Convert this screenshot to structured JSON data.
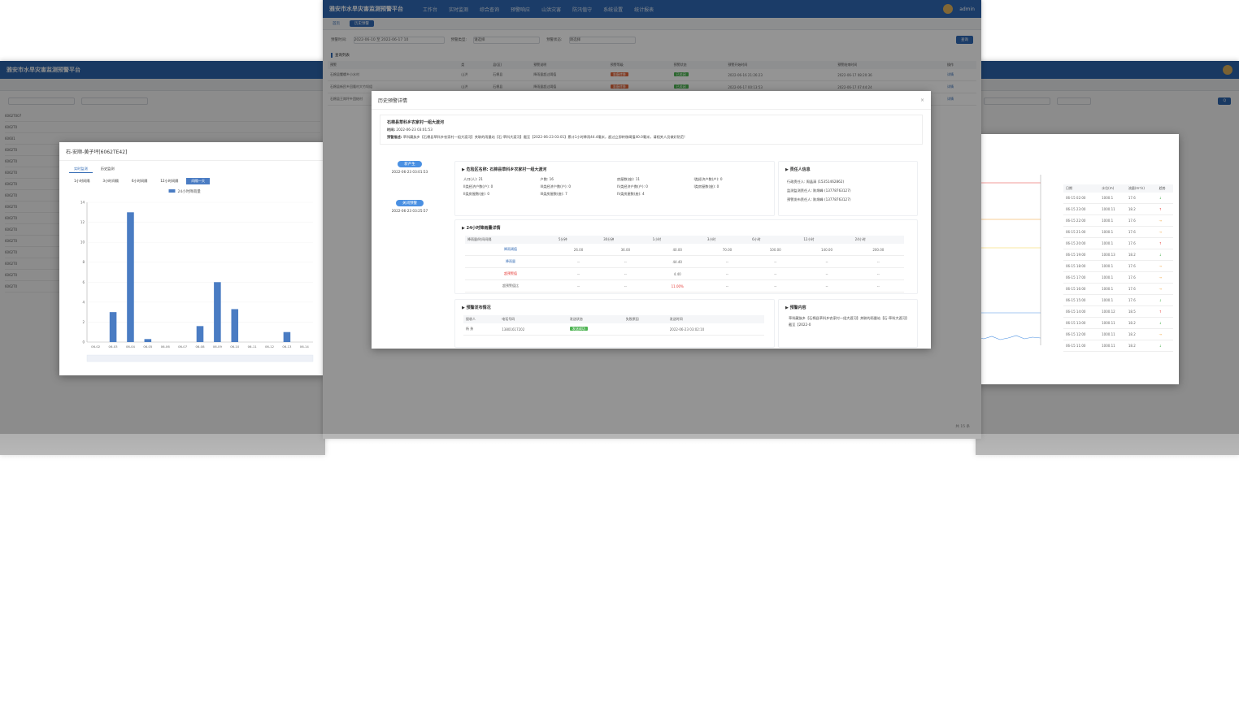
{
  "center": {
    "app_title": "雅安市水旱灾害监测预警平台",
    "nav": [
      "工作台",
      "实时监测",
      "综合查询",
      "预警响应",
      "山洪灾害",
      "防汛值守",
      "系统设置",
      "统计报表"
    ],
    "user_name": "admin",
    "tabs": [
      "首页",
      "历史预警"
    ],
    "filter": {
      "time_label": "预警时间:",
      "time_value": "2022-06-10 至 2022-06-17 10",
      "type_label": "预警类型:",
      "type_placeholder": "请选择",
      "status_label": "预警状态:",
      "status_placeholder": "请选择",
      "query_btn": "查询"
    },
    "section": "查询列表",
    "headers": [
      "预警",
      "类",
      "县(区)",
      "预警说明",
      "预警等级",
      "预警状态",
      "预警开始时间",
      "预警结束时间",
      "操作"
    ],
    "rows": [
      {
        "name": "石棉县蟹螺乡小水村",
        "type": "山洪",
        "county": "石棉县",
        "desc": "降雨量超过阈值",
        "level": "准备转移",
        "status": "已关闭",
        "start": "2022-06-16 21:26:23",
        "end": "2022-06-17 08:20:36",
        "op": "详情"
      },
      {
        "name": "石棉县新民乡回隆村大竹坝组",
        "type": "山洪",
        "county": "石棉县",
        "desc": "降雨量超过阈值",
        "level": "准备转移",
        "status": "已关闭",
        "start": "2022-06-17 00:13:53",
        "end": "2022-06-17 07:44:24",
        "op": "详情"
      },
      {
        "name": "石棉县王岗坪乡团结村",
        "type": "山洪",
        "county": "石棉县",
        "desc": "降雨量超过阈值",
        "level": "准备转移",
        "status": "已关闭",
        "start": "2022-06-16 23:43:53",
        "end": "2022-06-17 07:44:24",
        "op": "详情"
      }
    ],
    "pagination": "共 15 条",
    "modal": {
      "title": "历史预警详情",
      "place": "石棉县草科乡农家村一组大渡河",
      "time_label": "时间:",
      "time": "2022-06-23 03:01:53",
      "desc_label": "预警描述:",
      "desc": "草科藏族乡【石棉县草科乡农家村一组大渡河】关联的雨量站【石-草科大渡河】截至【2022-06-23 03:01】累计1小时降雨44.4毫米，超过立即转移阈值40.0毫米，请相关人员做好防范!",
      "timeline": [
        {
          "label": "新产生",
          "time": "2022-06-23 03:01:53"
        },
        {
          "label": "关闭预警",
          "time": "2022-06-23 03:25:57"
        }
      ],
      "danger": {
        "title": "危险区名称: 石棉县草科乡农家村一组大渡河",
        "kv": [
          "人口(人): 21",
          "户数: 16",
          "房屋数(座): 11",
          "I类经济户数(户): 0",
          "II类经济户数(户): 0",
          "III类经济户数(户): 0",
          "IV类经济户数(户): 0",
          "I类房屋数(座): 0",
          "II类房屋数(座): 0",
          "III类房屋数(座): 7",
          "IV类房屋数(座): 4"
        ]
      },
      "person": {
        "title": "责任人信息",
        "lines": [
          "行政责任人: 周晶清 (15351462862)",
          "监测监测责任人: 陈炳峰 (13778763127)",
          "预警发布责任人: 陈炳峰 (13778763127)"
        ]
      },
      "rain": {
        "title": "24小时降雨量详情",
        "headers": [
          "降雨量/时间间隔",
          "5分钟",
          "30分钟",
          "1小时",
          "3小时",
          "6小时",
          "12小时",
          "24小时"
        ],
        "rows": [
          {
            "name": "降雨阈值",
            "vals": [
              "26.00",
              "36.00",
              "40.00",
              "70.00",
              "100.00",
              "140.00",
              "200.00"
            ]
          },
          {
            "name": "降雨量",
            "vals": [
              "--",
              "--",
              "44.40",
              "--",
              "--",
              "--",
              "--"
            ]
          },
          {
            "name": "超预警值",
            "vals": [
              "--",
              "--",
              "4.40",
              "--",
              "--",
              "--",
              "--"
            ]
          },
          {
            "name": "超预警值比",
            "vals": [
              "--",
              "--",
              "11.00%",
              "--",
              "--",
              "--",
              "--"
            ]
          }
        ]
      },
      "publish": {
        "title": "预警发布情况",
        "headers": [
          "接收人",
          "电话号码",
          "发送状态",
          "失败原因",
          "发送时间"
        ],
        "row": [
          "杨 勇",
          "13801617202",
          "发送成功",
          "",
          "2022-06-23 03:02:10"
        ]
      },
      "content": {
        "title": "预警内容",
        "text": "草科藏族乡【石棉县草科乡农家村一组大渡河】关联的雨量站【石-草科大渡河】截至【2022-0"
      }
    }
  },
  "left": {
    "app_title": "雅安市水旱灾害监测预警平台",
    "modal_title": "石-安顺-黄子坪[6062TE42]",
    "chart_tabs": [
      "实时监测",
      "历史监测"
    ],
    "range_tabs": [
      "1小时间隔",
      "3小时间隔",
      "6小时间隔",
      "12小时间隔",
      "间隔一天"
    ],
    "legend": "24小时降雨量",
    "left_rows": [
      "6062T007",
      "6062T0",
      "60601",
      "6062T0",
      "6062T0",
      "6062T0",
      "6062T0",
      "6062T0",
      "6062T0",
      "6062T0",
      "6062T0",
      "6062T0",
      "6062T0",
      "6062T0",
      "6062T0",
      "6062T0"
    ]
  },
  "chart_data": {
    "type": "bar",
    "legend": "24小时降雨量",
    "categories": [
      "06-02",
      "06-03",
      "06-04",
      "06-05",
      "06-06",
      "06-07",
      "06-08",
      "06-09",
      "06-10",
      "06-11",
      "06-12",
      "06-13",
      "06-14"
    ],
    "values": [
      0,
      3,
      13,
      0.3,
      0,
      0,
      1.6,
      6,
      3.3,
      0,
      0,
      1,
      0
    ],
    "ylim": [
      0,
      14
    ]
  },
  "right": {
    "table_headers": [
      "日期",
      "水位(m)",
      "流量(m³/s)",
      "趋势"
    ],
    "rows": [
      [
        "06-15 02:00",
        "1000.1",
        "17.6",
        "↓"
      ],
      [
        "06-15 23:00",
        "1000.11",
        "18.2",
        "↑"
      ],
      [
        "06-15 22:00",
        "1000.1",
        "17.6",
        "→"
      ],
      [
        "06-15 21:00",
        "1000.1",
        "17.6",
        "→"
      ],
      [
        "06-15 20:00",
        "1000.1",
        "17.6",
        "↑"
      ],
      [
        "06-15 19:00",
        "1000.13",
        "18.2",
        "↓"
      ],
      [
        "06-15 18:00",
        "1000.1",
        "17.6",
        "→"
      ],
      [
        "06-15 17:00",
        "1000.1",
        "17.6",
        "→"
      ],
      [
        "06-15 16:00",
        "1000.1",
        "17.6",
        "→"
      ],
      [
        "06-15 15:00",
        "1000.1",
        "17.6",
        "↓"
      ],
      [
        "06-15 14:00",
        "1000.12",
        "18.5",
        "↑"
      ],
      [
        "06-15 13:00",
        "1000.11",
        "18.2",
        "↓"
      ],
      [
        "06-15 12:00",
        "1000.11",
        "18.2",
        "→"
      ],
      [
        "06-15 11:00",
        "1000.11",
        "18.2",
        "↓"
      ]
    ]
  }
}
